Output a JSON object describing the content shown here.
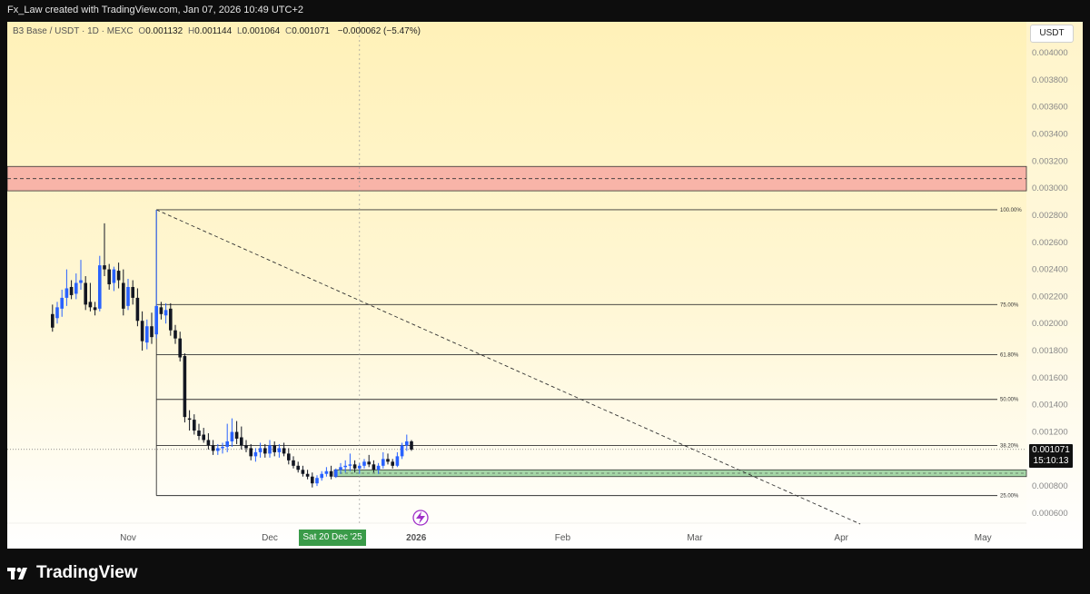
{
  "header": {
    "attribution": "Fx_Law created with TradingView.com, Jan 07, 2026 10:49 UTC+2"
  },
  "legend": {
    "symbol": "B3 Base / USDT · 1D · MEXC",
    "open_label": "O",
    "open": "0.001132",
    "high_label": "H",
    "high": "0.001144",
    "low_label": "L",
    "low": "0.001064",
    "close_label": "C",
    "close": "0.001071",
    "change": "−0.000062 (−5.47%)"
  },
  "currency_button": "USDT",
  "last_price": "0.001071",
  "countdown": "15:10:13",
  "crosshair_date": "Sat 20 Dec '25",
  "footer": {
    "brand": "TradingView"
  },
  "colors": {
    "bull": "#2962ff",
    "bear": "#131722",
    "resistance_zone": "#f8b4a8",
    "support_zone": "#a5d6a7",
    "fib_line": "#333333"
  },
  "chart_data": {
    "type": "candlestick",
    "y_range": [
      0.0005,
      0.0041
    ],
    "y_ticks": [
      "0.004000",
      "0.003800",
      "0.003600",
      "0.003400",
      "0.003200",
      "0.003000",
      "0.002800",
      "0.002600",
      "0.002400",
      "0.002200",
      "0.002000",
      "0.001800",
      "0.001600",
      "0.001400",
      "0.001200",
      "0.001000",
      "0.000800",
      "0.000600"
    ],
    "x_ticks": [
      {
        "label": "Nov",
        "day": 0
      },
      {
        "label": "Dec",
        "day": 30
      },
      {
        "label": "2026",
        "day": 61
      },
      {
        "label": "Feb",
        "day": 92
      },
      {
        "label": "Mar",
        "day": 120
      },
      {
        "label": "Apr",
        "day": 151
      },
      {
        "label": "May",
        "day": 181
      }
    ],
    "x_range_days": [
      -16,
      188
    ],
    "fib_levels": [
      {
        "label": "100.00%",
        "price": 0.00284
      },
      {
        "label": "75.00%",
        "price": 0.00214
      },
      {
        "label": "61.80%",
        "price": 0.00177
      },
      {
        "label": "50.00%",
        "price": 0.00144
      },
      {
        "label": "38.20%",
        "price": 0.0011
      },
      {
        "label": "25.00%",
        "price": 0.00073
      }
    ],
    "fib_start_day": 6,
    "resistance_zone": {
      "top": 0.00316,
      "bottom": 0.00298,
      "mid": 0.00307
    },
    "support_zone": {
      "top": 0.00092,
      "bottom": 0.00087
    },
    "trendline": {
      "from": {
        "day": 6,
        "price": 0.00284
      },
      "to": {
        "day": 155,
        "price": 0.00052
      }
    },
    "crosshair_day": 49,
    "candles": [
      {
        "d": -16,
        "o": 0.00207,
        "h": 0.00214,
        "l": 0.00194,
        "c": 0.00197
      },
      {
        "d": -15,
        "o": 0.00204,
        "h": 0.00216,
        "l": 0.002,
        "c": 0.00212
      },
      {
        "d": -14,
        "o": 0.00211,
        "h": 0.00225,
        "l": 0.00205,
        "c": 0.00219
      },
      {
        "d": -13,
        "o": 0.00219,
        "h": 0.0024,
        "l": 0.00213,
        "c": 0.00226
      },
      {
        "d": -12,
        "o": 0.00227,
        "h": 0.00232,
        "l": 0.00218,
        "c": 0.00221
      },
      {
        "d": -11,
        "o": 0.00222,
        "h": 0.00237,
        "l": 0.00218,
        "c": 0.0023
      },
      {
        "d": -10,
        "o": 0.0023,
        "h": 0.00247,
        "l": 0.00225,
        "c": 0.00232
      },
      {
        "d": -9,
        "o": 0.0023,
        "h": 0.00235,
        "l": 0.0021,
        "c": 0.00214
      },
      {
        "d": -8,
        "o": 0.00216,
        "h": 0.0023,
        "l": 0.00209,
        "c": 0.00212
      },
      {
        "d": -7,
        "o": 0.00212,
        "h": 0.00216,
        "l": 0.00206,
        "c": 0.0021
      },
      {
        "d": -6,
        "o": 0.00211,
        "h": 0.0025,
        "l": 0.00209,
        "c": 0.00243
      },
      {
        "d": -5,
        "o": 0.00243,
        "h": 0.00274,
        "l": 0.00235,
        "c": 0.0024
      },
      {
        "d": -4,
        "o": 0.0024,
        "h": 0.00244,
        "l": 0.00225,
        "c": 0.00229
      },
      {
        "d": -3,
        "o": 0.0023,
        "h": 0.00242,
        "l": 0.00224,
        "c": 0.0024
      },
      {
        "d": -2,
        "o": 0.00239,
        "h": 0.00245,
        "l": 0.00226,
        "c": 0.00232
      },
      {
        "d": -1,
        "o": 0.0023,
        "h": 0.0024,
        "l": 0.00206,
        "c": 0.00211
      },
      {
        "d": 0,
        "o": 0.00213,
        "h": 0.00233,
        "l": 0.0021,
        "c": 0.00227
      },
      {
        "d": 1,
        "o": 0.00227,
        "h": 0.00232,
        "l": 0.00214,
        "c": 0.00219
      },
      {
        "d": 2,
        "o": 0.00219,
        "h": 0.00226,
        "l": 0.00198,
        "c": 0.00202
      },
      {
        "d": 3,
        "o": 0.00202,
        "h": 0.00209,
        "l": 0.0018,
        "c": 0.00187
      },
      {
        "d": 4,
        "o": 0.00186,
        "h": 0.00203,
        "l": 0.00181,
        "c": 0.00198
      },
      {
        "d": 5,
        "o": 0.00198,
        "h": 0.00208,
        "l": 0.00185,
        "c": 0.0019
      },
      {
        "d": 6,
        "o": 0.00192,
        "h": 0.00284,
        "l": 0.00189,
        "c": 0.00213
      },
      {
        "d": 7,
        "o": 0.00212,
        "h": 0.00216,
        "l": 0.00203,
        "c": 0.00207
      },
      {
        "d": 8,
        "o": 0.00206,
        "h": 0.00215,
        "l": 0.002,
        "c": 0.0021
      },
      {
        "d": 9,
        "o": 0.00211,
        "h": 0.00215,
        "l": 0.00191,
        "c": 0.00195
      },
      {
        "d": 10,
        "o": 0.00195,
        "h": 0.00199,
        "l": 0.00185,
        "c": 0.00189
      },
      {
        "d": 11,
        "o": 0.00189,
        "h": 0.00194,
        "l": 0.00172,
        "c": 0.00175
      },
      {
        "d": 12,
        "o": 0.00176,
        "h": 0.00178,
        "l": 0.00127,
        "c": 0.00131
      },
      {
        "d": 13,
        "o": 0.0013,
        "h": 0.00136,
        "l": 0.00121,
        "c": 0.00129
      },
      {
        "d": 14,
        "o": 0.00129,
        "h": 0.00133,
        "l": 0.00118,
        "c": 0.00121
      },
      {
        "d": 15,
        "o": 0.00121,
        "h": 0.00126,
        "l": 0.00114,
        "c": 0.00117
      },
      {
        "d": 16,
        "o": 0.00118,
        "h": 0.00123,
        "l": 0.00112,
        "c": 0.00114
      },
      {
        "d": 17,
        "o": 0.00114,
        "h": 0.00119,
        "l": 0.00107,
        "c": 0.0011
      },
      {
        "d": 18,
        "o": 0.0011,
        "h": 0.00114,
        "l": 0.00103,
        "c": 0.00106
      },
      {
        "d": 19,
        "o": 0.00106,
        "h": 0.00111,
        "l": 0.00103,
        "c": 0.00108
      },
      {
        "d": 20,
        "o": 0.00108,
        "h": 0.00112,
        "l": 0.00104,
        "c": 0.00109
      },
      {
        "d": 21,
        "o": 0.00109,
        "h": 0.00126,
        "l": 0.00105,
        "c": 0.00113
      },
      {
        "d": 22,
        "o": 0.00113,
        "h": 0.0013,
        "l": 0.00109,
        "c": 0.0012
      },
      {
        "d": 23,
        "o": 0.0012,
        "h": 0.00128,
        "l": 0.00111,
        "c": 0.00115
      },
      {
        "d": 24,
        "o": 0.00116,
        "h": 0.00124,
        "l": 0.00107,
        "c": 0.0011
      },
      {
        "d": 25,
        "o": 0.0011,
        "h": 0.00114,
        "l": 0.00105,
        "c": 0.00108
      },
      {
        "d": 26,
        "o": 0.00108,
        "h": 0.00111,
        "l": 0.00099,
        "c": 0.00102
      },
      {
        "d": 27,
        "o": 0.00102,
        "h": 0.00108,
        "l": 0.00098,
        "c": 0.00105
      },
      {
        "d": 28,
        "o": 0.00105,
        "h": 0.00112,
        "l": 0.00101,
        "c": 0.00108
      },
      {
        "d": 29,
        "o": 0.00108,
        "h": 0.00111,
        "l": 0.00101,
        "c": 0.00104
      },
      {
        "d": 30,
        "o": 0.00104,
        "h": 0.00114,
        "l": 0.00101,
        "c": 0.0011
      },
      {
        "d": 31,
        "o": 0.0011,
        "h": 0.00113,
        "l": 0.00102,
        "c": 0.00105
      },
      {
        "d": 32,
        "o": 0.00105,
        "h": 0.00111,
        "l": 0.00101,
        "c": 0.00108
      },
      {
        "d": 33,
        "o": 0.00108,
        "h": 0.00112,
        "l": 0.00102,
        "c": 0.00104
      },
      {
        "d": 34,
        "o": 0.00104,
        "h": 0.00108,
        "l": 0.00096,
        "c": 0.00099
      },
      {
        "d": 35,
        "o": 0.00099,
        "h": 0.00102,
        "l": 0.00093,
        "c": 0.00095
      },
      {
        "d": 36,
        "o": 0.00095,
        "h": 0.00098,
        "l": 0.0009,
        "c": 0.00092
      },
      {
        "d": 37,
        "o": 0.00092,
        "h": 0.00095,
        "l": 0.00087,
        "c": 0.00089
      },
      {
        "d": 38,
        "o": 0.00089,
        "h": 0.00092,
        "l": 0.00085,
        "c": 0.00087
      },
      {
        "d": 39,
        "o": 0.00087,
        "h": 0.0009,
        "l": 0.00079,
        "c": 0.00082
      },
      {
        "d": 40,
        "o": 0.00082,
        "h": 0.00088,
        "l": 0.0008,
        "c": 0.00086
      },
      {
        "d": 41,
        "o": 0.00086,
        "h": 0.00091,
        "l": 0.00084,
        "c": 0.00089
      },
      {
        "d": 42,
        "o": 0.00089,
        "h": 0.00094,
        "l": 0.00087,
        "c": 0.00091
      },
      {
        "d": 43,
        "o": 0.00091,
        "h": 0.00095,
        "l": 0.00085,
        "c": 0.00087
      },
      {
        "d": 44,
        "o": 0.00087,
        "h": 0.00093,
        "l": 0.00086,
        "c": 0.00092
      },
      {
        "d": 45,
        "o": 0.00092,
        "h": 0.00097,
        "l": 0.00089,
        "c": 0.00094
      },
      {
        "d": 46,
        "o": 0.00094,
        "h": 0.00099,
        "l": 0.0009,
        "c": 0.00095
      },
      {
        "d": 47,
        "o": 0.00095,
        "h": 0.00104,
        "l": 0.00091,
        "c": 0.00096
      },
      {
        "d": 48,
        "o": 0.00096,
        "h": 0.00099,
        "l": 0.0009,
        "c": 0.00093
      },
      {
        "d": 49,
        "o": 0.00093,
        "h": 0.00097,
        "l": 0.00089,
        "c": 0.00095
      },
      {
        "d": 50,
        "o": 0.00095,
        "h": 0.001,
        "l": 0.00093,
        "c": 0.00098
      },
      {
        "d": 51,
        "o": 0.00098,
        "h": 0.00103,
        "l": 0.00094,
        "c": 0.00096
      },
      {
        "d": 52,
        "o": 0.00096,
        "h": 0.00099,
        "l": 0.0009,
        "c": 0.00092
      },
      {
        "d": 53,
        "o": 0.00092,
        "h": 0.00097,
        "l": 0.00089,
        "c": 0.00095
      },
      {
        "d": 54,
        "o": 0.00095,
        "h": 0.00105,
        "l": 0.00093,
        "c": 0.001
      },
      {
        "d": 55,
        "o": 0.001,
        "h": 0.00104,
        "l": 0.00096,
        "c": 0.00098
      },
      {
        "d": 56,
        "o": 0.00098,
        "h": 0.001,
        "l": 0.00093,
        "c": 0.00095
      },
      {
        "d": 57,
        "o": 0.00095,
        "h": 0.00105,
        "l": 0.00094,
        "c": 0.00102
      },
      {
        "d": 58,
        "o": 0.00102,
        "h": 0.00112,
        "l": 0.001,
        "c": 0.0011
      },
      {
        "d": 59,
        "o": 0.0011,
        "h": 0.00118,
        "l": 0.00106,
        "c": 0.00113
      },
      {
        "d": 60,
        "o": 0.00113,
        "h": 0.00114,
        "l": 0.00106,
        "c": 0.00107
      }
    ]
  }
}
